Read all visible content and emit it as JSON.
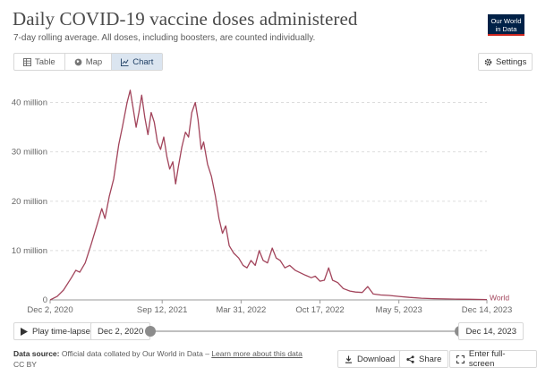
{
  "header": {
    "title": "Daily COVID-19 vaccine doses administered",
    "subtitle": "7-day rolling average. All doses, including boosters, are counted individually.",
    "logo_line1": "Our World",
    "logo_line2": "in Data"
  },
  "tabs": [
    {
      "label": "Table",
      "icon": "table-icon",
      "active": false
    },
    {
      "label": "Map",
      "icon": "globe-icon",
      "active": false
    },
    {
      "label": "Chart",
      "icon": "line-chart-icon",
      "active": true
    }
  ],
  "settings_label": "Settings",
  "colors": {
    "series": "#a2445b",
    "grid": "#dddddd",
    "axis": "#666666",
    "active_tab": "#dbe5f0"
  },
  "chart_data": {
    "type": "line",
    "title": "Daily COVID-19 vaccine doses administered",
    "subtitle": "7-day rolling average. All doses, including boosters, are counted individually.",
    "xlabel": "",
    "ylabel": "",
    "x_range": [
      "2020-12-02",
      "2023-12-14"
    ],
    "ylim": [
      0,
      43000000
    ],
    "y_ticks": [
      {
        "value": 0,
        "label": "0"
      },
      {
        "value": 10000000,
        "label": "10 million"
      },
      {
        "value": 20000000,
        "label": "20 million"
      },
      {
        "value": 30000000,
        "label": "30 million"
      },
      {
        "value": 40000000,
        "label": "40 million"
      }
    ],
    "x_ticks": [
      {
        "value": "2020-12-02",
        "label": "Dec 2, 2020"
      },
      {
        "value": "2021-09-12",
        "label": "Sep 12, 2021"
      },
      {
        "value": "2022-03-31",
        "label": "Mar 31, 2022"
      },
      {
        "value": "2022-10-17",
        "label": "Oct 17, 2022"
      },
      {
        "value": "2023-05-05",
        "label": "May 5, 2023"
      },
      {
        "value": "2023-12-14",
        "label": "Dec 14, 2023"
      }
    ],
    "grid": true,
    "series": [
      {
        "name": "World",
        "points": [
          [
            "2020-12-02",
            0
          ],
          [
            "2020-12-20",
            700000
          ],
          [
            "2021-01-05",
            2000000
          ],
          [
            "2021-01-25",
            4500000
          ],
          [
            "2021-02-05",
            6000000
          ],
          [
            "2021-02-15",
            5600000
          ],
          [
            "2021-03-01",
            7500000
          ],
          [
            "2021-03-15",
            11000000
          ],
          [
            "2021-04-01",
            15500000
          ],
          [
            "2021-04-12",
            18500000
          ],
          [
            "2021-04-20",
            16500000
          ],
          [
            "2021-05-01",
            21000000
          ],
          [
            "2021-05-12",
            24500000
          ],
          [
            "2021-05-25",
            31500000
          ],
          [
            "2021-06-03",
            35000000
          ],
          [
            "2021-06-15",
            40000000
          ],
          [
            "2021-06-23",
            42500000
          ],
          [
            "2021-06-30",
            39000000
          ],
          [
            "2021-07-08",
            35000000
          ],
          [
            "2021-07-15",
            38000000
          ],
          [
            "2021-07-22",
            41500000
          ],
          [
            "2021-07-30",
            37000000
          ],
          [
            "2021-08-07",
            33500000
          ],
          [
            "2021-08-15",
            38000000
          ],
          [
            "2021-08-23",
            36000000
          ],
          [
            "2021-08-31",
            32000000
          ],
          [
            "2021-09-08",
            30500000
          ],
          [
            "2021-09-16",
            33000000
          ],
          [
            "2021-09-24",
            29000000
          ],
          [
            "2021-10-01",
            26500000
          ],
          [
            "2021-10-09",
            28000000
          ],
          [
            "2021-10-16",
            23500000
          ],
          [
            "2021-10-23",
            27000000
          ],
          [
            "2021-11-01",
            31000000
          ],
          [
            "2021-11-10",
            34000000
          ],
          [
            "2021-11-18",
            33000000
          ],
          [
            "2021-11-26",
            38000000
          ],
          [
            "2021-12-05",
            40000000
          ],
          [
            "2021-12-12",
            36500000
          ],
          [
            "2021-12-20",
            30500000
          ],
          [
            "2021-12-26",
            32000000
          ],
          [
            "2022-01-05",
            27500000
          ],
          [
            "2022-01-15",
            25000000
          ],
          [
            "2022-01-25",
            21000000
          ],
          [
            "2022-02-03",
            16500000
          ],
          [
            "2022-02-12",
            13500000
          ],
          [
            "2022-02-20",
            15000000
          ],
          [
            "2022-03-01",
            11000000
          ],
          [
            "2022-03-12",
            9500000
          ],
          [
            "2022-03-25",
            8500000
          ],
          [
            "2022-04-05",
            7000000
          ],
          [
            "2022-04-15",
            6500000
          ],
          [
            "2022-04-25",
            8000000
          ],
          [
            "2022-05-06",
            7000000
          ],
          [
            "2022-05-16",
            10000000
          ],
          [
            "2022-05-26",
            8000000
          ],
          [
            "2022-06-06",
            7500000
          ],
          [
            "2022-06-18",
            10500000
          ],
          [
            "2022-06-28",
            8500000
          ],
          [
            "2022-07-08",
            8000000
          ],
          [
            "2022-07-20",
            6500000
          ],
          [
            "2022-08-01",
            7000000
          ],
          [
            "2022-08-15",
            6000000
          ],
          [
            "2022-08-28",
            5500000
          ],
          [
            "2022-09-10",
            5000000
          ],
          [
            "2022-09-25",
            4500000
          ],
          [
            "2022-10-05",
            4800000
          ],
          [
            "2022-10-17",
            3800000
          ],
          [
            "2022-10-28",
            4000000
          ],
          [
            "2022-11-08",
            6500000
          ],
          [
            "2022-11-18",
            4000000
          ],
          [
            "2022-12-01",
            3500000
          ],
          [
            "2022-12-15",
            2300000
          ],
          [
            "2023-01-01",
            1800000
          ],
          [
            "2023-01-15",
            1600000
          ],
          [
            "2023-02-01",
            1500000
          ],
          [
            "2023-02-15",
            2700000
          ],
          [
            "2023-03-01",
            1200000
          ],
          [
            "2023-03-20",
            1000000
          ],
          [
            "2023-04-10",
            900000
          ],
          [
            "2023-05-05",
            700000
          ],
          [
            "2023-06-01",
            500000
          ],
          [
            "2023-07-01",
            350000
          ],
          [
            "2023-08-01",
            250000
          ],
          [
            "2023-09-01",
            200000
          ],
          [
            "2023-10-01",
            150000
          ],
          [
            "2023-11-01",
            120000
          ],
          [
            "2023-12-14",
            80000
          ]
        ]
      }
    ]
  },
  "timeline": {
    "play_label": "Play time-lapse",
    "start_date": "Dec 2, 2020",
    "end_date": "Dec 14, 2023"
  },
  "footer": {
    "source_label": "Data source:",
    "source_text": "Official data collated by Our World in Data – ",
    "source_link": "Learn more about this data",
    "license": "CC BY"
  },
  "actions": {
    "download": "Download",
    "share": "Share",
    "fullscreen": "Enter full-screen"
  }
}
